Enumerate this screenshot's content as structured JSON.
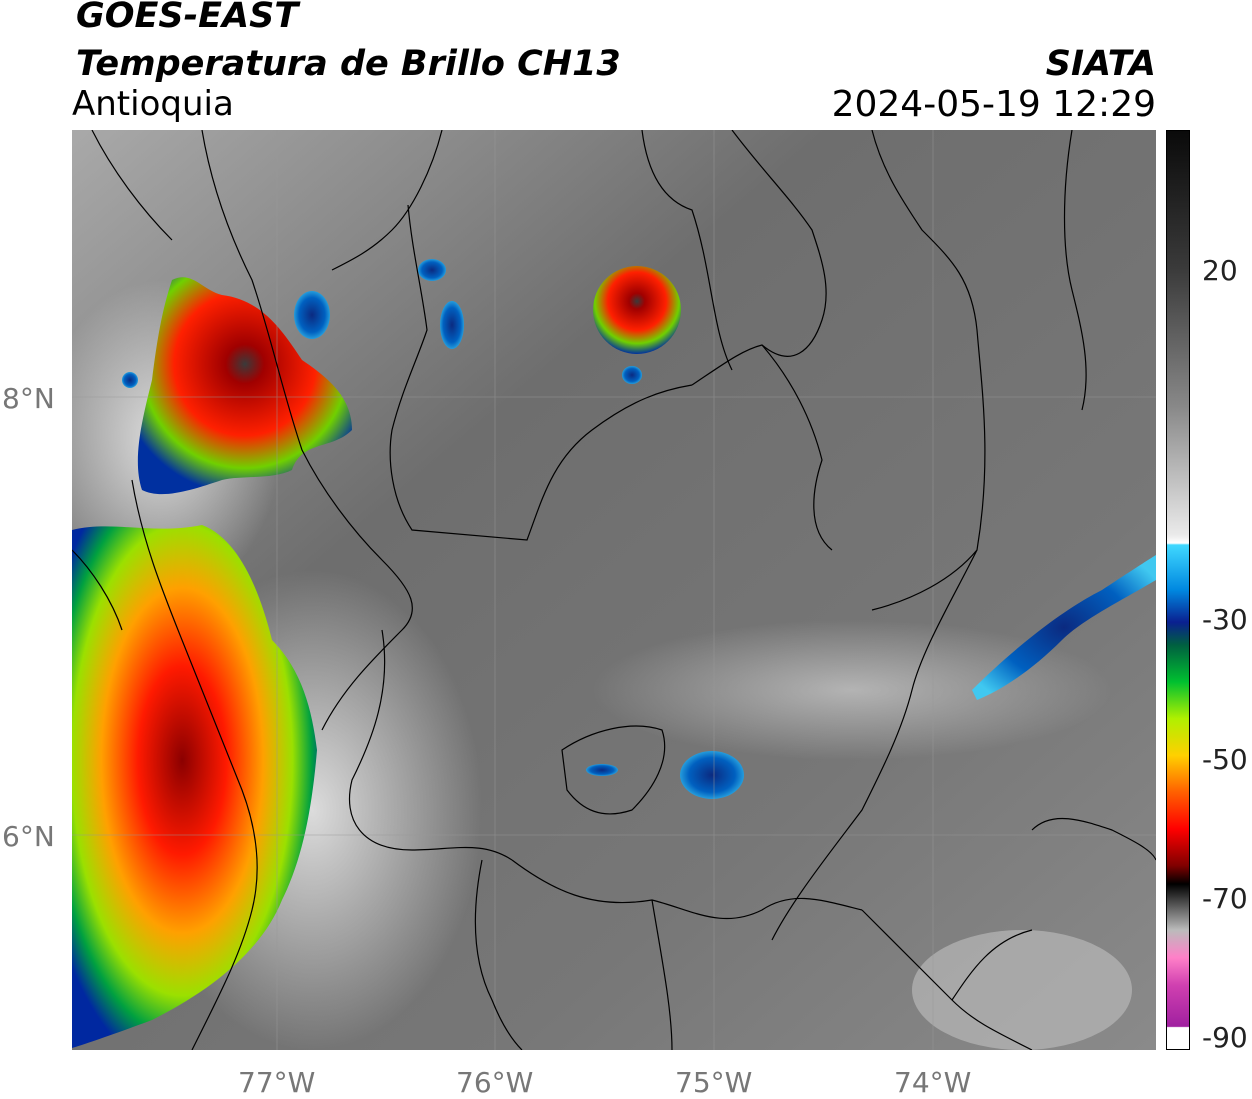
{
  "header": {
    "satellite": "GOES-EAST",
    "product": "Temperatura de Brillo CH13",
    "region": "Antioquia",
    "organization": "SIATA",
    "datetime": "2024-05-19 12:29"
  },
  "map": {
    "lat_labels": [
      "8°N",
      "6°N"
    ],
    "lon_labels": [
      "77°W",
      "76°W",
      "75°W",
      "74°W"
    ]
  },
  "colorbar": {
    "tick_labels": [
      "20",
      "-30",
      "-50",
      "-70",
      "-90"
    ]
  }
}
